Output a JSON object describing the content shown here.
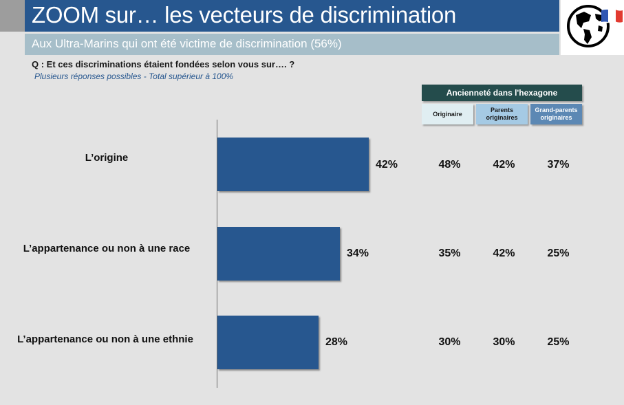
{
  "header": {
    "title": "ZOOM sur… les vecteurs de discrimination",
    "subtitle": "Aux Ultra-Marins qui ont été victime de discrimination (56%)"
  },
  "question": "Q : Et ces discriminations étaient fondées selon vous sur…. ?",
  "note": "Plusieurs réponses possibles - Total supérieur à 100%",
  "table": {
    "group_header": "Ancienneté dans l'hexagone",
    "columns": [
      [
        "Originaire"
      ],
      [
        "Parents",
        "originaires"
      ],
      [
        "Grand-parents",
        "originaires"
      ]
    ],
    "rows": [
      [
        "48%",
        "42%",
        "37%"
      ],
      [
        "35%",
        "42%",
        "25%"
      ],
      [
        "30%",
        "30%",
        "25%"
      ]
    ]
  },
  "colors": {
    "bar": "#27578f",
    "title_band": "#27578f",
    "subtitle_band": "#a6bec9",
    "group_header": "#244c4c"
  },
  "icons": [
    "globe-icon",
    "french-flag-icon"
  ],
  "chart_data": {
    "type": "bar",
    "orientation": "horizontal",
    "categories": [
      "L’origine",
      "L’appartenance ou non à une race",
      "L’appartenance ou non à une ethnie"
    ],
    "values": [
      42,
      34,
      28
    ],
    "value_labels": [
      "42%",
      "34%",
      "28%"
    ],
    "unit": "%",
    "xlim": [
      0,
      100
    ],
    "grid": false,
    "legend": "none"
  }
}
